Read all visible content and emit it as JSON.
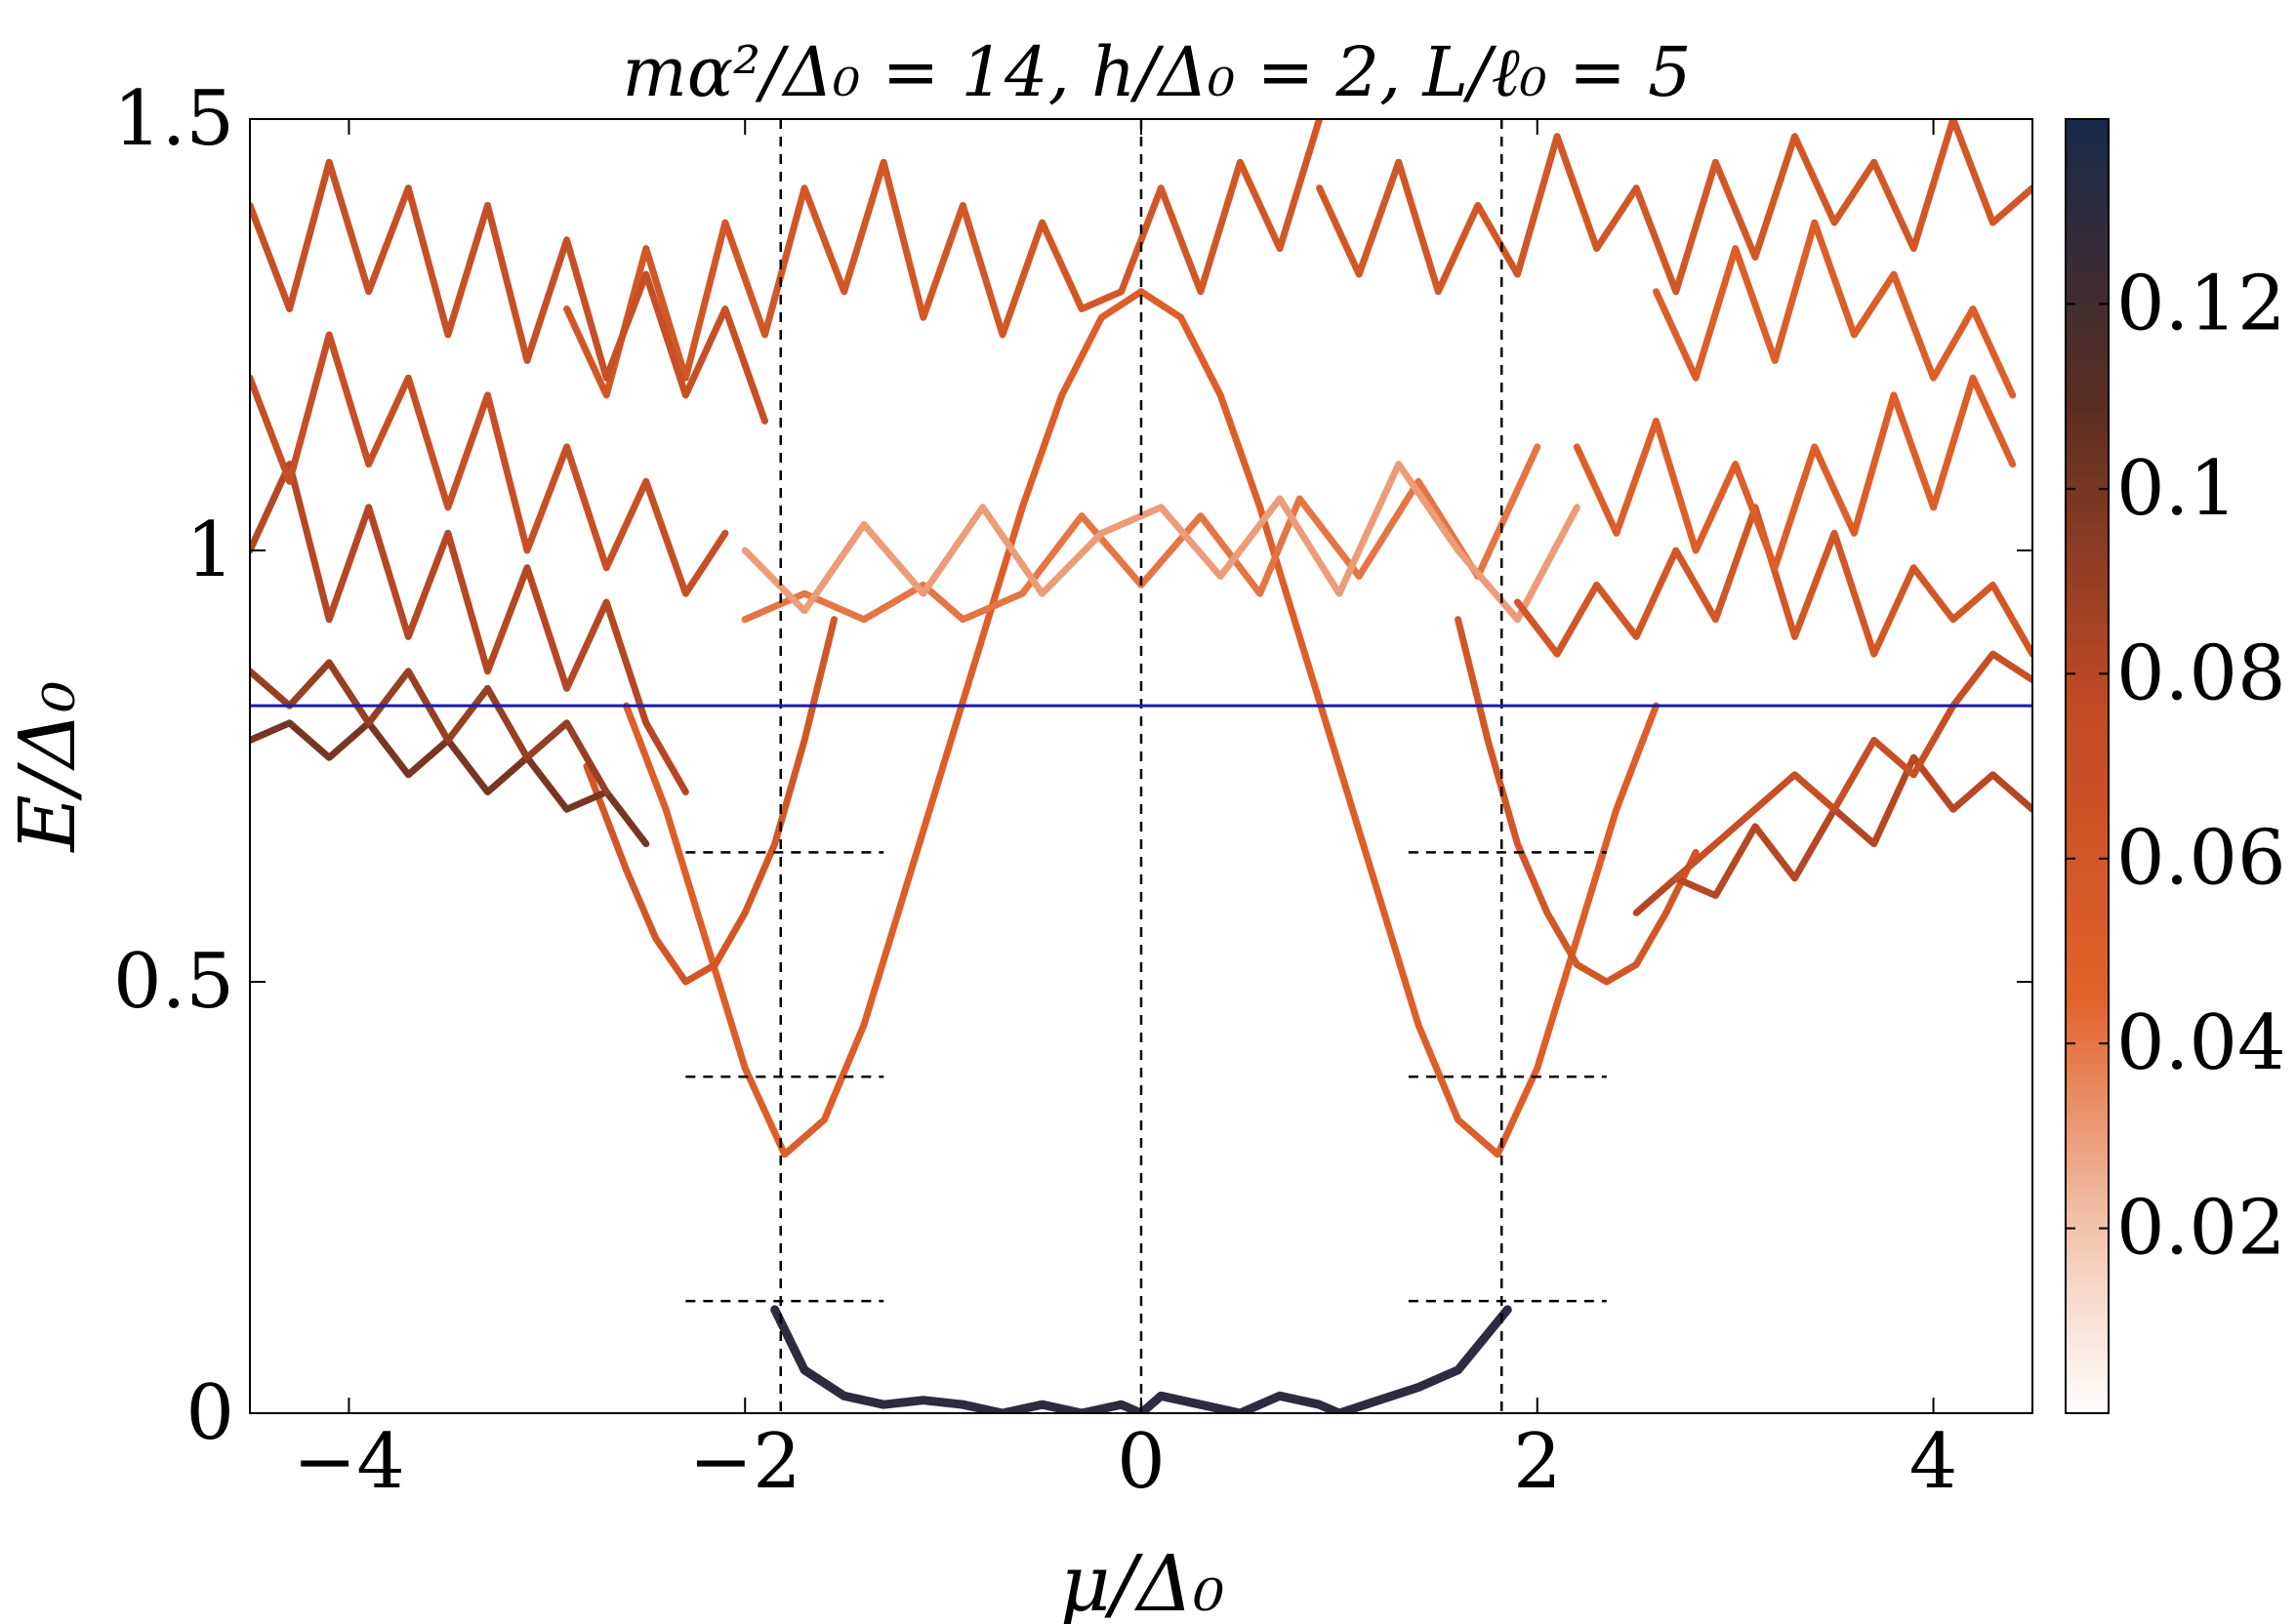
{
  "chart_data": {
    "type": "heatmap",
    "title": "mα²/Δ₀ = 14, h/Δ₀ = 2, L/ℓ₀ = 5",
    "xlabel": "μ/Δ₀",
    "ylabel": "E/Δ₀",
    "xlim": [
      -4.5,
      4.5
    ],
    "ylim": [
      0,
      1.5
    ],
    "x_ticks": [
      -4,
      -2,
      0,
      2,
      4
    ],
    "x_tick_labels": [
      "−4",
      "−2",
      "0",
      "2",
      "4"
    ],
    "y_ticks": [
      0,
      0.5,
      1,
      1.5
    ],
    "y_tick_labels": [
      "0",
      "0.5",
      "1",
      "1.5"
    ],
    "colorbar": {
      "range": [
        0,
        0.14
      ],
      "ticks": [
        0.02,
        0.04,
        0.06,
        0.08,
        0.1,
        0.12
      ],
      "tick_labels": [
        "0.02",
        "0.04",
        "0.06",
        "0.08",
        "0.1",
        "0.12"
      ],
      "colors": [
        "#ffffff",
        "#f2c0a8",
        "#e2622a",
        "#c04a24",
        "#5a2e22",
        "#172a4a"
      ]
    },
    "horizontal_line": {
      "y": 0.82,
      "color": "#1a1ab4",
      "style": "solid"
    },
    "vertical_lines": [
      {
        "x": -1.82,
        "style": "dashed"
      },
      {
        "x": 0,
        "style": "dashed"
      },
      {
        "x": 1.82,
        "style": "dashed"
      }
    ],
    "short_dashed_segments": [
      {
        "x": [
          -2.3,
          -1.3
        ],
        "y": 0.65
      },
      {
        "x": [
          -2.3,
          -1.3
        ],
        "y": 0.39
      },
      {
        "x": [
          -2.3,
          -1.3
        ],
        "y": 0.13
      },
      {
        "x": [
          1.35,
          2.35
        ],
        "y": 0.65
      },
      {
        "x": [
          1.35,
          2.35
        ],
        "y": 0.39
      },
      {
        "x": [
          1.35,
          2.35
        ],
        "y": 0.13
      }
    ],
    "series": [
      {
        "weight": 0.13,
        "x": [
          -1.85,
          -1.7,
          -1.5,
          -1.3,
          -1.1,
          -0.9,
          -0.7,
          -0.5,
          -0.3,
          -0.1,
          0,
          0.1,
          0.3,
          0.5,
          0.7,
          0.9,
          1.0,
          1.2,
          1.4,
          1.6,
          1.85
        ],
        "y": [
          0.12,
          0.05,
          0.02,
          0.01,
          0.015,
          0.01,
          0.0,
          0.01,
          0.0,
          0.01,
          0.0,
          0.02,
          0.01,
          0.0,
          0.02,
          0.01,
          0.0,
          0.015,
          0.03,
          0.05,
          0.12
        ]
      },
      {
        "weight": 0.05,
        "x": [
          -2.6,
          -2.4,
          -2.2,
          -2.0,
          -1.9,
          -1.8,
          -1.6,
          -1.4,
          -1.2,
          -1.0,
          -0.8,
          -0.6,
          -0.4,
          -0.2,
          0.0
        ],
        "y": [
          0.82,
          0.7,
          0.55,
          0.4,
          0.35,
          0.3,
          0.34,
          0.45,
          0.6,
          0.75,
          0.9,
          1.05,
          1.18,
          1.27,
          1.3
        ]
      },
      {
        "weight": 0.05,
        "x": [
          0.0,
          0.2,
          0.4,
          0.6,
          0.8,
          1.0,
          1.2,
          1.4,
          1.6,
          1.8,
          1.9,
          2.0,
          2.2,
          2.4,
          2.6
        ],
        "y": [
          1.3,
          1.27,
          1.18,
          1.05,
          0.9,
          0.75,
          0.6,
          0.45,
          0.34,
          0.3,
          0.35,
          0.4,
          0.55,
          0.7,
          0.82
        ]
      },
      {
        "weight": 0.06,
        "x": [
          -2.8,
          -2.6,
          -2.45,
          -2.3,
          -2.15,
          -2.0,
          -1.85,
          -1.7,
          -1.55
        ],
        "y": [
          0.75,
          0.63,
          0.55,
          0.5,
          0.52,
          0.58,
          0.66,
          0.78,
          0.92
        ]
      },
      {
        "weight": 0.06,
        "x": [
          1.6,
          1.75,
          1.9,
          2.05,
          2.2,
          2.35,
          2.5,
          2.65,
          2.8
        ],
        "y": [
          0.92,
          0.78,
          0.66,
          0.58,
          0.52,
          0.5,
          0.52,
          0.58,
          0.65
        ]
      },
      {
        "weight": 0.04,
        "x": [
          -2.0,
          -1.7,
          -1.4,
          -1.1,
          -0.9,
          -0.6,
          -0.3,
          0.0,
          0.3,
          0.6,
          0.8,
          1.1,
          1.4,
          1.7,
          2.0
        ],
        "y": [
          0.92,
          0.95,
          0.92,
          0.96,
          0.92,
          0.95,
          1.04,
          0.96,
          1.04,
          0.95,
          1.06,
          0.97,
          1.08,
          0.97,
          1.12
        ]
      },
      {
        "weight": 0.03,
        "x": [
          -2.0,
          -1.7,
          -1.4,
          -1.1,
          -0.8,
          -0.5,
          -0.2,
          0.1,
          0.4,
          0.7,
          1.0,
          1.3,
          1.6,
          1.9,
          2.2
        ],
        "y": [
          1.0,
          0.93,
          1.03,
          0.95,
          1.05,
          0.95,
          1.02,
          1.05,
          0.97,
          1.06,
          0.95,
          1.1,
          1.0,
          0.92,
          1.05
        ]
      },
      {
        "weight": 0.06,
        "x": [
          -2.9,
          -2.7,
          -2.5,
          -2.3,
          -2.1,
          -1.9,
          -1.7,
          -1.5,
          -1.3,
          -1.1,
          -0.9,
          -0.7,
          -0.5,
          -0.3,
          -0.1,
          0.1,
          0.3,
          0.5,
          0.7,
          0.9
        ],
        "y": [
          1.28,
          1.18,
          1.35,
          1.2,
          1.38,
          1.25,
          1.42,
          1.3,
          1.45,
          1.27,
          1.4,
          1.25,
          1.38,
          1.28,
          1.3,
          1.42,
          1.3,
          1.45,
          1.35,
          1.5
        ]
      },
      {
        "weight": 0.06,
        "x": [
          0.9,
          1.1,
          1.3,
          1.5,
          1.7,
          1.9,
          2.1,
          2.3,
          2.5,
          2.7,
          2.9,
          3.1,
          3.3,
          3.5,
          3.7,
          3.9,
          4.1,
          4.3,
          4.5
        ],
        "y": [
          1.42,
          1.32,
          1.45,
          1.3,
          1.4,
          1.32,
          1.48,
          1.35,
          1.42,
          1.3,
          1.45,
          1.34,
          1.48,
          1.38,
          1.45,
          1.35,
          1.5,
          1.38,
          1.42
        ]
      },
      {
        "weight": 0.1,
        "x": [
          -4.5,
          -4.3,
          -4.1,
          -3.9,
          -3.7,
          -3.5,
          -3.3,
          -3.1,
          -2.9,
          -2.7,
          -2.5
        ],
        "y": [
          0.78,
          0.8,
          0.76,
          0.8,
          0.74,
          0.78,
          0.72,
          0.76,
          0.7,
          0.72,
          0.66
        ]
      },
      {
        "weight": 0.09,
        "x": [
          -4.5,
          -4.3,
          -4.1,
          -3.9,
          -3.7,
          -3.5,
          -3.3,
          -3.1,
          -2.9,
          -2.7
        ],
        "y": [
          0.86,
          0.82,
          0.87,
          0.8,
          0.86,
          0.78,
          0.84,
          0.76,
          0.8,
          0.72
        ]
      },
      {
        "weight": 0.08,
        "x": [
          -4.5,
          -4.3,
          -4.1,
          -3.9,
          -3.7,
          -3.5,
          -3.3,
          -3.1,
          -2.9,
          -2.7,
          -2.5,
          -2.3
        ],
        "y": [
          1.0,
          1.1,
          0.92,
          1.05,
          0.9,
          1.02,
          0.86,
          0.98,
          0.84,
          0.94,
          0.8,
          0.72
        ]
      },
      {
        "weight": 0.07,
        "x": [
          -4.5,
          -4.3,
          -4.1,
          -3.9,
          -3.7,
          -3.5,
          -3.3,
          -3.1,
          -2.9,
          -2.7,
          -2.5,
          -2.3,
          -2.1
        ],
        "y": [
          1.2,
          1.08,
          1.25,
          1.1,
          1.2,
          1.05,
          1.18,
          1.0,
          1.12,
          0.98,
          1.08,
          0.95,
          1.02
        ]
      },
      {
        "weight": 0.07,
        "x": [
          -4.5,
          -4.3,
          -4.1,
          -3.9,
          -3.7,
          -3.5,
          -3.3,
          -3.1,
          -2.9,
          -2.7,
          -2.5,
          -2.3,
          -2.1,
          -1.9
        ],
        "y": [
          1.4,
          1.28,
          1.45,
          1.3,
          1.42,
          1.25,
          1.4,
          1.22,
          1.36,
          1.2,
          1.32,
          1.18,
          1.28,
          1.15
        ]
      },
      {
        "weight": 0.08,
        "x": [
          2.5,
          2.7,
          2.9,
          3.1,
          3.3,
          3.5,
          3.7,
          3.9,
          4.1,
          4.3,
          4.5
        ],
        "y": [
          0.58,
          0.62,
          0.6,
          0.68,
          0.62,
          0.7,
          0.66,
          0.76,
          0.7,
          0.74,
          0.7
        ]
      },
      {
        "weight": 0.07,
        "x": [
          2.7,
          2.9,
          3.1,
          3.3,
          3.5,
          3.7,
          3.9,
          4.1,
          4.3,
          4.5
        ],
        "y": [
          0.62,
          0.66,
          0.7,
          0.74,
          0.7,
          0.78,
          0.74,
          0.82,
          0.88,
          0.85
        ]
      },
      {
        "weight": 0.06,
        "x": [
          1.9,
          2.1,
          2.3,
          2.5,
          2.7,
          2.9,
          3.1,
          3.3,
          3.5,
          3.7,
          3.9,
          4.1,
          4.3,
          4.5
        ],
        "y": [
          0.94,
          0.88,
          0.96,
          0.9,
          1.0,
          0.92,
          1.05,
          0.9,
          1.02,
          0.88,
          0.98,
          0.92,
          0.96,
          0.88
        ]
      },
      {
        "weight": 0.05,
        "x": [
          2.2,
          2.4,
          2.6,
          2.8,
          3.0,
          3.2,
          3.4,
          3.6,
          3.8,
          4.0,
          4.2,
          4.4
        ],
        "y": [
          1.12,
          1.02,
          1.15,
          1.0,
          1.1,
          0.98,
          1.12,
          1.02,
          1.18,
          1.05,
          1.2,
          1.1
        ]
      },
      {
        "weight": 0.05,
        "x": [
          2.6,
          2.8,
          3.0,
          3.2,
          3.4,
          3.6,
          3.8,
          4.0,
          4.2,
          4.4
        ],
        "y": [
          1.3,
          1.2,
          1.35,
          1.22,
          1.38,
          1.25,
          1.32,
          1.2,
          1.28,
          1.18
        ]
      }
    ]
  }
}
